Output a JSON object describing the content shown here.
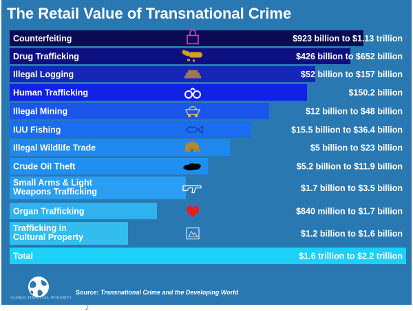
{
  "title": "The Retail Value of Transnational Crime",
  "chart_data": {
    "type": "bar",
    "orientation": "horizontal",
    "categories": [
      "Counterfeiting",
      "Drug Trafficking",
      "Illegal Logging",
      "Human Trafficking",
      "Illegal Mining",
      "IUU Fishing",
      "Illegal Wildlife Trade",
      "Crude Oil Theft",
      "Small Arms & Light Weapons Trafficking",
      "Organ Trafficking",
      "Trafficking in Cultural Property",
      "Total"
    ],
    "value_labels": [
      "$923 billion to $1.13 trillion",
      "$426 billion to $652 billion",
      "$52 billion to $157 billion",
      "$150.2 billion",
      "$12 billion to $48 billion",
      "$15.5 billion to $36.4 billion",
      "$5 billion to $23 billion",
      "$5.2 billion to $11.9 billion",
      "$1.7 billion to $3.5 billion",
      "$840 million to $1.7 billion",
      "$1.2 billion to $1.6 billion",
      "$1.6 trillion to $2.2 trillion"
    ],
    "bar_extent": [
      0.893,
      0.86,
      0.77,
      0.75,
      0.655,
      0.61,
      0.555,
      0.5,
      0.445,
      0.371,
      0.298,
      1.0
    ],
    "icons": [
      "padlock-icon",
      "pills-icon",
      "log-pile-icon",
      "handcuffs-icon",
      "mine-cart-icon",
      "fish-icon",
      "elephant-icon",
      "oil-spill-icon",
      "rifle-icon",
      "heart-icon",
      "artifact-icon",
      ""
    ],
    "colors": [
      "#0b0b54",
      "#0d1080",
      "#1626b8",
      "#0f22e6",
      "#1a56ec",
      "#1a6df0",
      "#1f88f0",
      "#1f8ff2",
      "#2a9ef2",
      "#30b2f0",
      "#33bdef",
      "#1cd0f8"
    ]
  },
  "source": {
    "prefix": "Source: ",
    "text": "Transnational Crime and the Developing World"
  },
  "logo_text": "GLOBAL FINANCIAL INTEGRITY",
  "footer_mark": "2"
}
